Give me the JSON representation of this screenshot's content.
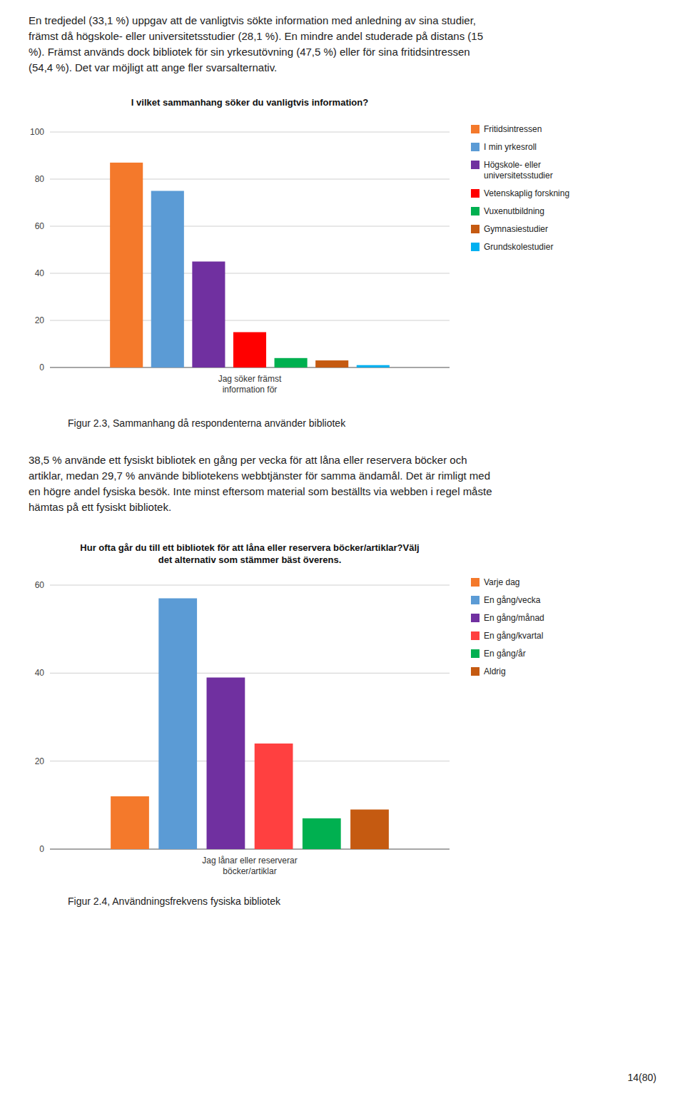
{
  "paragraphs": [
    "En tredjedel (33,1 %) uppgav att de vanligtvis sökte information med anledning av sina studier,\nfrämst då högskole- eller universitetsstudier (28,1 %). En mindre andel studerade på distans (15\n%). Främst används dock bibliotek för sin yrkesutövning (47,5 %) eller för sina fritidsintressen\n(54,4 %). Det var möjligt att ange fler svarsalternativ.",
    "38,5 % använde ett fysiskt bibliotek en gång per vecka för att låna eller reservera böcker och\nartiklar, medan 29,7 % använde bibliotekens webbtjänster för samma ändamål. Det är rimligt med\nen högre andel fysiska besök. Inte minst eftersom material som beställts via webben i regel måste\nhämtas på ett fysiskt bibliotek."
  ],
  "page_number": "14(80)",
  "chart_data": [
    {
      "type": "bar",
      "title": "I vilket sammanhang söker du vanligtvis information?",
      "caption": "Figur 2.3, Sammanhang då respondenterna använder bibliotek",
      "categories": [
        "Jag söker främst\ninformation för"
      ],
      "series": [
        {
          "name": "Fritidsintressen",
          "color": "#F4792B",
          "values": [
            87
          ]
        },
        {
          "name": "I min yrkesroll",
          "color": "#5B9BD5",
          "values": [
            75
          ]
        },
        {
          "name": "Högskole- eller\nuniversitetsstudier",
          "color": "#7030A0",
          "values": [
            45
          ]
        },
        {
          "name": "Vetenskaplig forskning",
          "color": "#FF0000",
          "values": [
            15
          ]
        },
        {
          "name": "Vuxenutbildning",
          "color": "#00B050",
          "values": [
            4
          ]
        },
        {
          "name": "Gymnasiestudier",
          "color": "#C55A11",
          "values": [
            3
          ]
        },
        {
          "name": "Grundskolestudier",
          "color": "#00B0F0",
          "values": [
            1
          ]
        }
      ],
      "ylim": [
        0,
        100
      ],
      "yticks": [
        0,
        20,
        40,
        60,
        80,
        100
      ],
      "grid": true,
      "legend": "right"
    },
    {
      "type": "bar",
      "title": "Hur ofta går du till ett bibliotek för att låna eller reservera böcker/artiklar?Välj\ndet alternativ som stämmer bäst överens.",
      "caption": "Figur 2.4, Användningsfrekvens fysiska bibliotek",
      "categories": [
        "Jag lånar eller reserverar\nböcker/artiklar"
      ],
      "series": [
        {
          "name": "Varje dag",
          "color": "#F4792B",
          "values": [
            12
          ]
        },
        {
          "name": "En gång/vecka",
          "color": "#5B9BD5",
          "values": [
            57
          ]
        },
        {
          "name": "En gång/månad",
          "color": "#7030A0",
          "values": [
            39
          ]
        },
        {
          "name": "En gång/kvartal",
          "color": "#FF4040",
          "values": [
            24
          ]
        },
        {
          "name": "En gång/år",
          "color": "#00B050",
          "values": [
            7
          ]
        },
        {
          "name": "Aldrig",
          "color": "#C55A11",
          "values": [
            9
          ]
        }
      ],
      "ylim": [
        0,
        60
      ],
      "yticks": [
        0,
        20,
        40,
        60
      ],
      "grid": true,
      "legend": "right"
    }
  ]
}
